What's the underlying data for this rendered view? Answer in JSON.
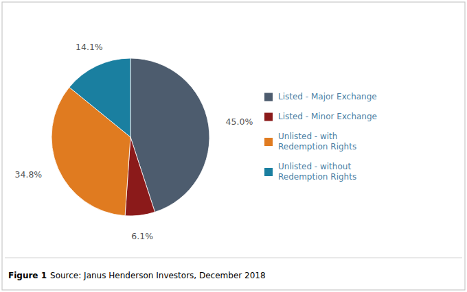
{
  "chart_data": {
    "type": "pie",
    "categories": [
      "Listed - Major Exchange",
      "Listed - Minor Exchange",
      "Unlisted - with\nRedemption Rights",
      "Unlisted - without\nRedemption Rights"
    ],
    "values": [
      45.0,
      6.1,
      34.8,
      14.1
    ],
    "value_labels": [
      "45.0%",
      "6.1%",
      "34.8%",
      "14.1%"
    ],
    "colors": [
      "#4d5c6e",
      "#8b1a1a",
      "#e07b20",
      "#1a7fa0"
    ],
    "data_labels": true,
    "legend": "right",
    "annotations": [
      {
        "text": "Figure 1"
      },
      {
        "text": "Source: Janus Henderson Investors, December 2018"
      }
    ]
  }
}
